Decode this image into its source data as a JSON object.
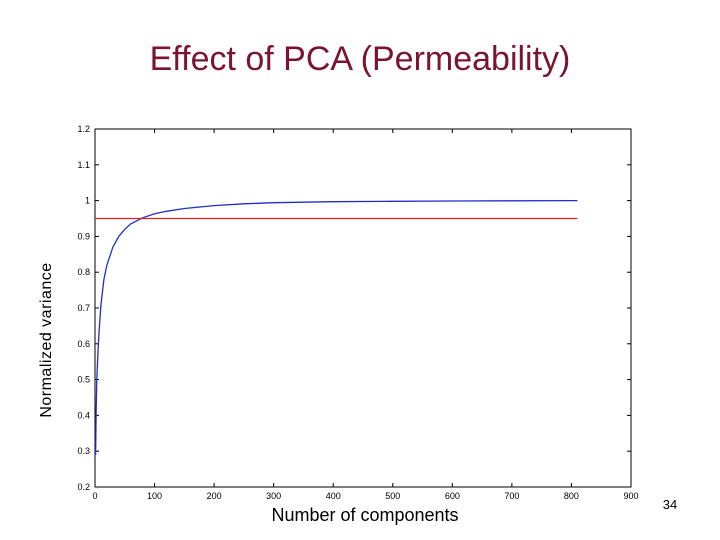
{
  "slide": {
    "page_number": "34"
  },
  "chart_data": {
    "type": "line",
    "title": "Effect of PCA (Permeability)",
    "xlabel": "Number of components",
    "ylabel": "Normalized variance",
    "xlim": [
      0,
      900
    ],
    "ylim": [
      0.2,
      1.2
    ],
    "xticks": [
      0,
      100,
      200,
      300,
      400,
      500,
      600,
      700,
      800,
      900
    ],
    "yticks": [
      0.2,
      0.3,
      0.4,
      0.5,
      0.6,
      0.7,
      0.8,
      0.9,
      1,
      1.1,
      1.2
    ],
    "grid": false,
    "series": [
      {
        "color": "#1f2fc8",
        "x": [
          1,
          2,
          3,
          5,
          7,
          10,
          15,
          20,
          30,
          40,
          50,
          60,
          80,
          100,
          120,
          150,
          200,
          250,
          300,
          400,
          500,
          600,
          700,
          800,
          810
        ],
        "y": [
          0.29,
          0.42,
          0.5,
          0.58,
          0.64,
          0.71,
          0.78,
          0.82,
          0.87,
          0.9,
          0.92,
          0.935,
          0.952,
          0.963,
          0.97,
          0.978,
          0.986,
          0.991,
          0.994,
          0.997,
          0.998,
          0.999,
          0.9995,
          1.0,
          1.0
        ]
      },
      {
        "color": "#e02020",
        "x": [
          0,
          810
        ],
        "y": [
          0.95,
          0.95
        ]
      }
    ]
  }
}
